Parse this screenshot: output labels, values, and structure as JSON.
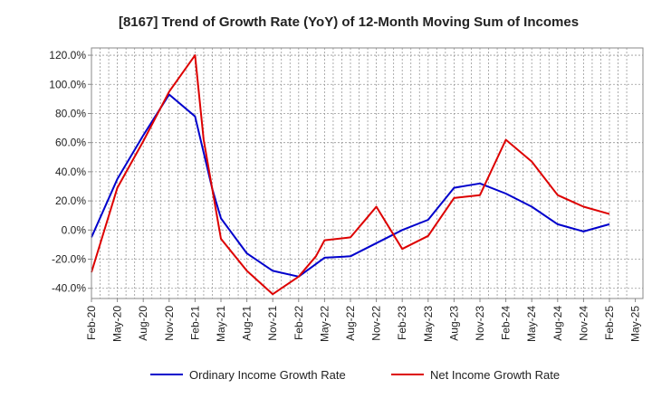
{
  "chart_data": {
    "type": "line",
    "title": "[8167]  Trend of Growth Rate (YoY) of 12-Month Moving Sum of Incomes",
    "xlabel": "",
    "ylabel": "",
    "ylim": [
      -47,
      125
    ],
    "x_ticks": [
      "Feb-20",
      "May-20",
      "Aug-20",
      "Nov-20",
      "Feb-21",
      "May-21",
      "Aug-21",
      "Nov-21",
      "Feb-22",
      "May-22",
      "Aug-22",
      "Nov-22",
      "Feb-23",
      "May-23",
      "Aug-23",
      "Nov-23",
      "Feb-24",
      "May-24",
      "Aug-24",
      "Nov-24",
      "Feb-25",
      "May-25"
    ],
    "y_ticks": [
      120,
      100,
      80,
      60,
      40,
      20,
      0,
      -20,
      -40
    ],
    "y_tick_labels": [
      "120.0%",
      "100.0%",
      "80.0%",
      "60.0%",
      "40.0%",
      "20.0%",
      "0.0%",
      "-20.0%",
      "-40.0%"
    ],
    "grid": true,
    "legend_position": "bottom",
    "x": [
      "Feb-20",
      "May-20",
      "Aug-20",
      "Nov-20",
      "Feb-21",
      "May-21",
      "Aug-21",
      "Nov-21",
      "Feb-22",
      "May-22",
      "Aug-22",
      "Nov-22",
      "Feb-23",
      "May-23",
      "Aug-23",
      "Nov-23",
      "Feb-24",
      "May-24",
      "Aug-24",
      "Nov-24",
      "Feb-25"
    ],
    "series": [
      {
        "name": "Ordinary Income Growth Rate",
        "color": "#0000cc",
        "points": [
          {
            "x": "Feb-20",
            "y": -5
          },
          {
            "x": "May-20",
            "y": 35
          },
          {
            "x": "Aug-20",
            "y": 65
          },
          {
            "x": "Nov-20",
            "y": 93
          },
          {
            "x": "Feb-21",
            "y": 78
          },
          {
            "x": "Apr-21",
            "y": 28
          },
          {
            "x": "May-21",
            "y": 8
          },
          {
            "x": "Aug-21",
            "y": -16
          },
          {
            "x": "Nov-21",
            "y": -28
          },
          {
            "x": "Feb-22",
            "y": -32
          },
          {
            "x": "May-22",
            "y": -19
          },
          {
            "x": "Aug-22",
            "y": -18
          },
          {
            "x": "Nov-22",
            "y": -9
          },
          {
            "x": "Feb-23",
            "y": 0
          },
          {
            "x": "May-23",
            "y": 7
          },
          {
            "x": "Aug-23",
            "y": 29
          },
          {
            "x": "Nov-23",
            "y": 32
          },
          {
            "x": "Feb-24",
            "y": 25
          },
          {
            "x": "May-24",
            "y": 16
          },
          {
            "x": "Aug-24",
            "y": 4
          },
          {
            "x": "Nov-24",
            "y": -1
          },
          {
            "x": "Feb-25",
            "y": 4
          }
        ]
      },
      {
        "name": "Net Income Growth Rate",
        "color": "#dd0000",
        "points": [
          {
            "x": "Feb-20",
            "y": -29
          },
          {
            "x": "May-20",
            "y": 29
          },
          {
            "x": "Aug-20",
            "y": 61
          },
          {
            "x": "Nov-20",
            "y": 95
          },
          {
            "x": "Feb-21",
            "y": 120
          },
          {
            "x": "Mar-21",
            "y": 62
          },
          {
            "x": "May-21",
            "y": -6
          },
          {
            "x": "Aug-21",
            "y": -28
          },
          {
            "x": "Nov-21",
            "y": -44
          },
          {
            "x": "Feb-22",
            "y": -32
          },
          {
            "x": "Apr-22",
            "y": -18
          },
          {
            "x": "May-22",
            "y": -7
          },
          {
            "x": "Aug-22",
            "y": -5
          },
          {
            "x": "Oct-22",
            "y": 9
          },
          {
            "x": "Nov-22",
            "y": 16
          },
          {
            "x": "Feb-23",
            "y": -13
          },
          {
            "x": "May-23",
            "y": -4
          },
          {
            "x": "Aug-23",
            "y": 22
          },
          {
            "x": "Nov-23",
            "y": 24
          },
          {
            "x": "Feb-24",
            "y": 62
          },
          {
            "x": "May-24",
            "y": 47
          },
          {
            "x": "Aug-24",
            "y": 24
          },
          {
            "x": "Nov-24",
            "y": 16
          },
          {
            "x": "Feb-25",
            "y": 11
          }
        ]
      }
    ]
  }
}
